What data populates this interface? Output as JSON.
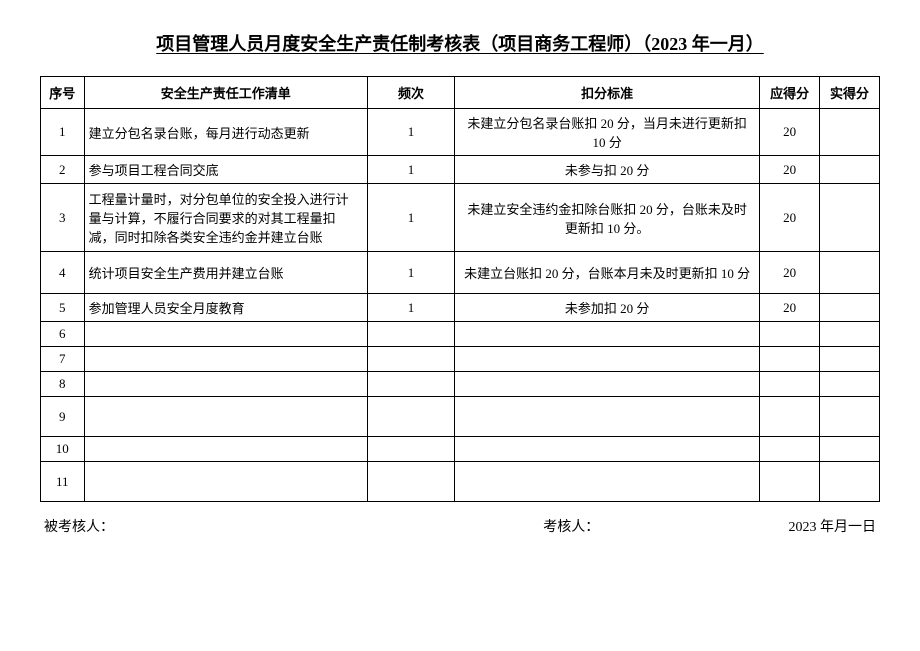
{
  "title": "项目管理人员月度安全生产责任制考核表（项目商务工程师）（2023 年一月）",
  "headers": {
    "seq": "序号",
    "task": "安全生产责任工作清单",
    "freq": "频次",
    "deduct": "扣分标准",
    "should": "应得分",
    "actual": "实得分"
  },
  "rows": [
    {
      "seq": "1",
      "task": "建立分包名录台账，每月进行动态更新",
      "freq": "1",
      "deduct": "未建立分包名录台账扣 20 分，当月未进行更新扣 10 分",
      "should": "20",
      "actual": ""
    },
    {
      "seq": "2",
      "task": "参与项目工程合同交底",
      "freq": "1",
      "deduct": "未参与扣 20 分",
      "should": "20",
      "actual": ""
    },
    {
      "seq": "3",
      "task": "工程量计量时，对分包单位的安全投入进行计量与计算，不履行合同要求的对其工程量扣减，同时扣除各类安全违约金并建立台账",
      "freq": "1",
      "deduct": "未建立安全违约金扣除台账扣 20 分，台账未及时更新扣 10 分。",
      "should": "20",
      "actual": ""
    },
    {
      "seq": "4",
      "task": "统计项目安全生产费用并建立台账",
      "freq": "1",
      "deduct": "未建立台账扣 20 分，台账本月未及时更新扣 10 分",
      "should": "20",
      "actual": ""
    },
    {
      "seq": "5",
      "task": "参加管理人员安全月度教育",
      "freq": "1",
      "deduct": "未参加扣 20 分",
      "should": "20",
      "actual": ""
    },
    {
      "seq": "6",
      "task": "",
      "freq": "",
      "deduct": "",
      "should": "",
      "actual": ""
    },
    {
      "seq": "7",
      "task": "",
      "freq": "",
      "deduct": "",
      "should": "",
      "actual": ""
    },
    {
      "seq": "8",
      "task": "",
      "freq": "",
      "deduct": "",
      "should": "",
      "actual": ""
    },
    {
      "seq": "9",
      "task": "",
      "freq": "",
      "deduct": "",
      "should": "",
      "actual": ""
    },
    {
      "seq": "10",
      "task": "",
      "freq": "",
      "deduct": "",
      "should": "",
      "actual": ""
    },
    {
      "seq": "11",
      "task": "",
      "freq": "",
      "deduct": "",
      "should": "",
      "actual": ""
    }
  ],
  "footer": {
    "assessee": "被考核人：",
    "assessor": "考核人：",
    "date": "2023 年月一日"
  }
}
